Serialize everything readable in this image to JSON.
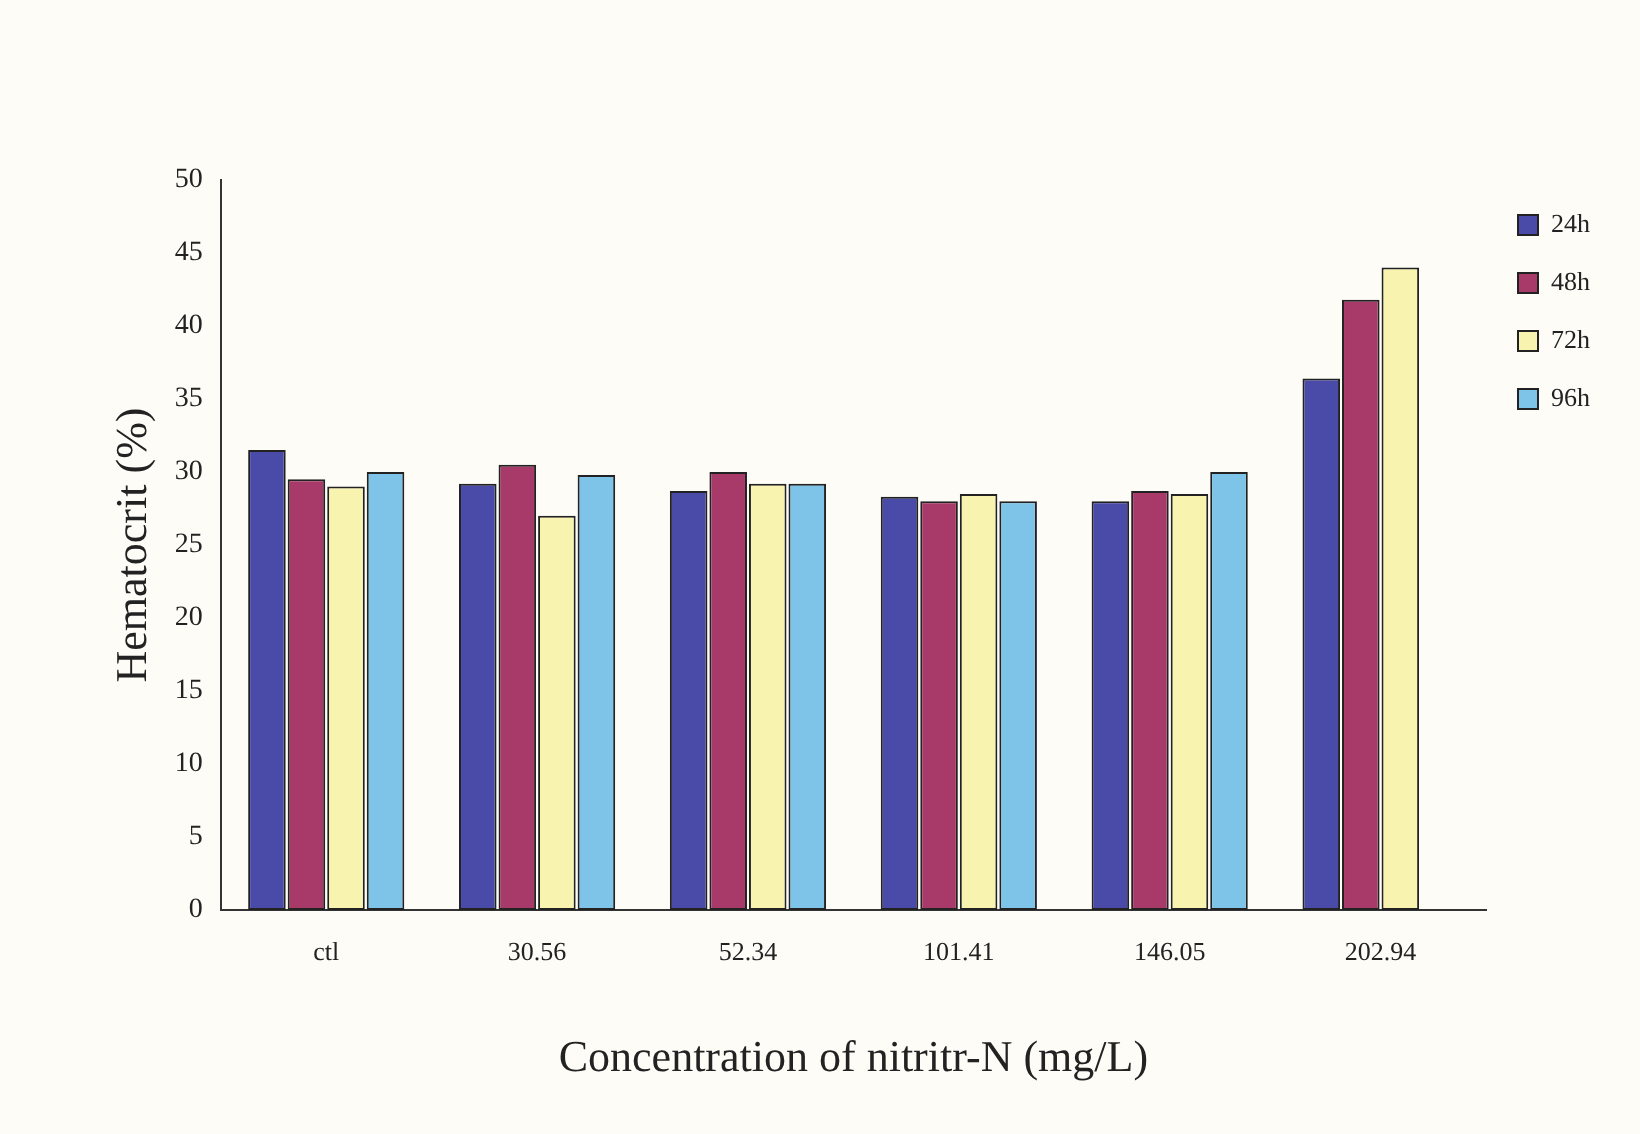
{
  "chart_data": {
    "type": "bar",
    "xlabel": "Concentration of nitritr-N (mg/L)",
    "ylabel": "Hematocrit (%)",
    "categories": [
      "ctl",
      "30.56",
      "52.34",
      "101.41",
      "146.05",
      "202.94"
    ],
    "series": [
      {
        "name": "24h",
        "color": "#4a4aa8",
        "values": [
          31.5,
          29.2,
          28.7,
          28.3,
          28,
          36.4
        ]
      },
      {
        "name": "48h",
        "color": "#a83a6a",
        "values": [
          29.5,
          30.5,
          30,
          28,
          28.7,
          41.8
        ]
      },
      {
        "name": "72h",
        "color": "#f8f4b0",
        "values": [
          29,
          27,
          29.2,
          28.5,
          28.5,
          44
        ]
      },
      {
        "name": "96h",
        "color": "#7ec4e8",
        "values": [
          30,
          29.8,
          29.2,
          28,
          30,
          null
        ]
      }
    ],
    "ylim": [
      0,
      50
    ],
    "yticks": [
      0,
      5,
      10,
      15,
      20,
      25,
      30,
      35,
      40,
      45,
      50
    ],
    "grid": false,
    "legend": "top right"
  }
}
